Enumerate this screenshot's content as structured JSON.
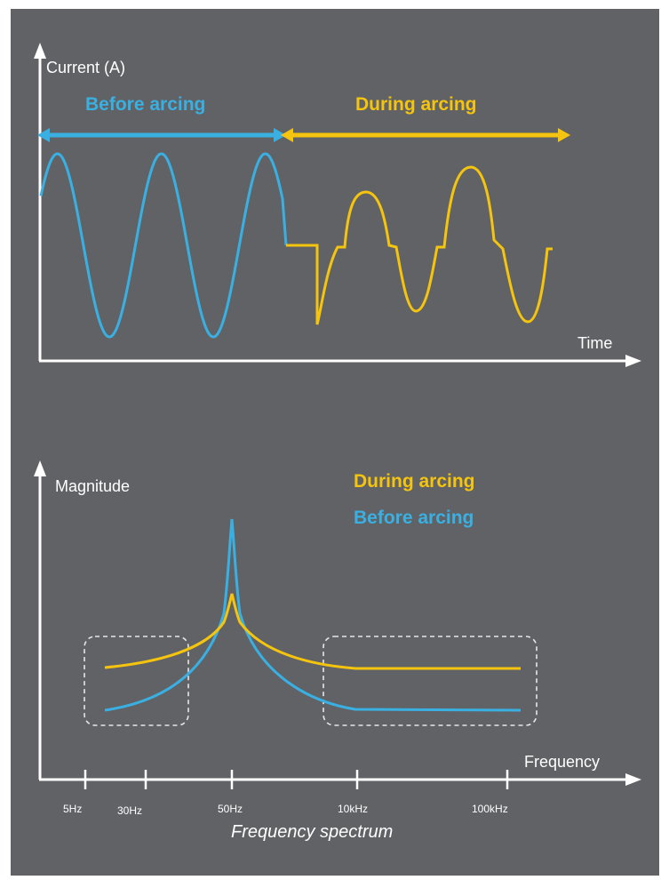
{
  "colors": {
    "background": "#616266",
    "before": "#3ab0e2",
    "during": "#f5c40f",
    "axis": "#ffffff"
  },
  "time_plot": {
    "y_axis_label": "Current (A)",
    "x_axis_label": "Time",
    "before_label": "Before arcing",
    "during_label": "During arcing"
  },
  "spectrum_plot": {
    "y_axis_label": "Magnitude",
    "x_axis_label": "Frequency",
    "legend_during": "During arcing",
    "legend_before": "Before arcing",
    "ticks": [
      "5Hz",
      "30Hz",
      "50Hz",
      "10kHz",
      "100kHz"
    ],
    "caption": "Frequency spectrum"
  }
}
